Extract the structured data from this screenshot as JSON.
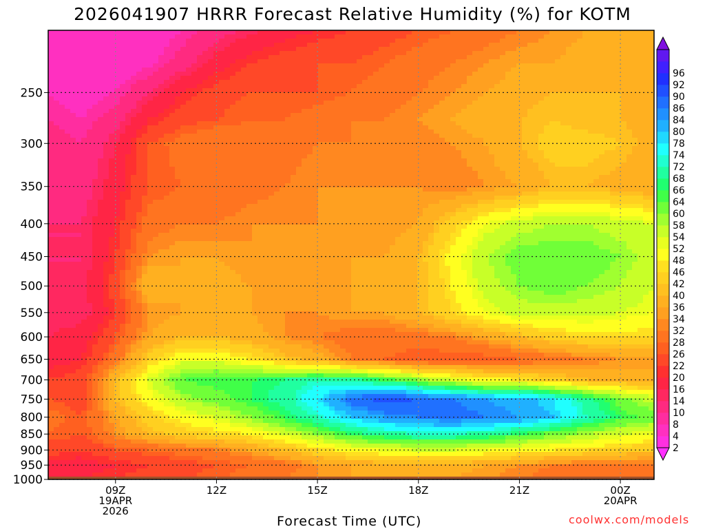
{
  "title": "2026041907 HRRR Forecast Relative Humidity (%) for KOTM",
  "xlabel": "Forecast Time (UTC)",
  "credit": "coolwx.com/models",
  "chart_data": {
    "type": "heatmap",
    "title": "2026041907 HRRR Forecast Relative Humidity (%) for KOTM",
    "xlabel": "Forecast Time (UTC)",
    "ylabel": "",
    "x_ticks": [
      {
        "hour": 9,
        "lines": [
          "09Z",
          "19APR",
          "2026"
        ]
      },
      {
        "hour": 12,
        "lines": [
          "12Z"
        ]
      },
      {
        "hour": 15,
        "lines": [
          "15Z"
        ]
      },
      {
        "hour": 18,
        "lines": [
          "18Z"
        ]
      },
      {
        "hour": 21,
        "lines": [
          "21Z"
        ]
      },
      {
        "hour": 24,
        "lines": [
          "00Z",
          "20APR"
        ]
      }
    ],
    "xlim": [
      7,
      25
    ],
    "y_ticks": [
      250,
      300,
      350,
      400,
      450,
      500,
      550,
      600,
      650,
      700,
      750,
      800,
      850,
      900,
      950,
      1000
    ],
    "ylim": [
      1000,
      200
    ],
    "y_scale": "log",
    "colorbar_levels": [
      2,
      4,
      8,
      10,
      14,
      16,
      20,
      22,
      26,
      28,
      32,
      34,
      36,
      40,
      42,
      46,
      48,
      52,
      54,
      58,
      60,
      64,
      66,
      68,
      72,
      74,
      78,
      80,
      84,
      86,
      90,
      92,
      96
    ],
    "colorbar_colors": [
      "#ff30ff",
      "#ff30e0",
      "#ff30c0",
      "#ff2da0",
      "#ff2a80",
      "#ff2860",
      "#ff2545",
      "#ff3030",
      "#ff4828",
      "#ff6020",
      "#ff7420",
      "#ff8820",
      "#ffa020",
      "#ffb020",
      "#ffc020",
      "#ffd020",
      "#ffe020",
      "#ffff20",
      "#e8ff20",
      "#c8ff28",
      "#a0ff30",
      "#70ff38",
      "#40ff48",
      "#20ff70",
      "#20ffa0",
      "#20ffd0",
      "#20ffff",
      "#20d8ff",
      "#20b0ff",
      "#2090ff",
      "#2070ff",
      "#2050ff",
      "#2030ff",
      "#4020ff",
      "#6018f0",
      "#8010e0"
    ],
    "rows": [
      {
        "p": 200,
        "values": [
          5,
          4,
          4,
          5,
          8,
          12,
          15,
          18,
          20,
          22,
          24,
          26,
          28,
          30,
          32,
          34,
          36,
          36,
          38
        ]
      },
      {
        "p": 225,
        "values": [
          6,
          5,
          5,
          7,
          12,
          18,
          22,
          24,
          26,
          26,
          28,
          30,
          32,
          34,
          36,
          36,
          38,
          38,
          38
        ]
      },
      {
        "p": 250,
        "values": [
          8,
          6,
          8,
          14,
          20,
          24,
          26,
          26,
          26,
          28,
          30,
          32,
          34,
          36,
          38,
          40,
          40,
          40,
          38
        ]
      },
      {
        "p": 275,
        "values": [
          10,
          8,
          12,
          20,
          24,
          26,
          28,
          28,
          30,
          32,
          32,
          34,
          36,
          38,
          40,
          42,
          40,
          40,
          38
        ]
      },
      {
        "p": 300,
        "values": [
          12,
          10,
          16,
          26,
          30,
          32,
          30,
          30,
          32,
          32,
          34,
          32,
          34,
          36,
          40,
          44,
          44,
          42,
          38
        ]
      },
      {
        "p": 350,
        "values": [
          14,
          12,
          18,
          26,
          28,
          28,
          30,
          32,
          34,
          34,
          34,
          34,
          32,
          34,
          36,
          40,
          40,
          38,
          36
        ]
      },
      {
        "p": 400,
        "values": [
          14,
          14,
          20,
          30,
          32,
          32,
          34,
          34,
          34,
          34,
          34,
          36,
          44,
          52,
          56,
          58,
          58,
          56,
          54
        ]
      },
      {
        "p": 450,
        "values": [
          14,
          14,
          22,
          34,
          36,
          36,
          34,
          34,
          34,
          36,
          36,
          40,
          50,
          58,
          62,
          62,
          62,
          60,
          56
        ]
      },
      {
        "p": 500,
        "values": [
          14,
          14,
          24,
          40,
          36,
          38,
          36,
          34,
          34,
          36,
          36,
          40,
          48,
          56,
          60,
          62,
          60,
          58,
          54
        ]
      },
      {
        "p": 550,
        "values": [
          14,
          14,
          22,
          34,
          36,
          38,
          36,
          34,
          34,
          36,
          36,
          40,
          46,
          52,
          56,
          56,
          56,
          54,
          52
        ]
      },
      {
        "p": 600,
        "values": [
          16,
          18,
          26,
          36,
          40,
          40,
          38,
          34,
          32,
          30,
          30,
          30,
          32,
          36,
          40,
          44,
          46,
          46,
          46
        ]
      },
      {
        "p": 650,
        "values": [
          18,
          20,
          30,
          44,
          52,
          52,
          48,
          42,
          38,
          32,
          28,
          26,
          26,
          26,
          28,
          30,
          32,
          34,
          36
        ]
      },
      {
        "p": 700,
        "values": [
          22,
          24,
          40,
          54,
          64,
          66,
          66,
          68,
          72,
          70,
          66,
          60,
          54,
          50,
          48,
          44,
          40,
          38,
          36
        ]
      },
      {
        "p": 750,
        "values": [
          26,
          24,
          40,
          50,
          58,
          62,
          66,
          70,
          78,
          88,
          92,
          90,
          86,
          84,
          82,
          78,
          70,
          62,
          56
        ]
      },
      {
        "p": 800,
        "values": [
          30,
          26,
          36,
          44,
          50,
          54,
          60,
          66,
          72,
          80,
          84,
          86,
          88,
          86,
          84,
          80,
          72,
          66,
          62
        ]
      },
      {
        "p": 850,
        "values": [
          28,
          26,
          34,
          40,
          44,
          46,
          48,
          54,
          60,
          66,
          70,
          72,
          72,
          70,
          66,
          62,
          58,
          54,
          52
        ]
      },
      {
        "p": 900,
        "values": [
          24,
          22,
          26,
          28,
          30,
          32,
          36,
          40,
          46,
          50,
          52,
          54,
          54,
          52,
          50,
          48,
          46,
          44,
          42
        ]
      },
      {
        "p": 950,
        "values": [
          18,
          18,
          20,
          22,
          24,
          26,
          28,
          30,
          34,
          36,
          38,
          38,
          38,
          36,
          34,
          32,
          30,
          30,
          30
        ]
      },
      {
        "p": 1000,
        "values": [
          20,
          20,
          22,
          24,
          26,
          28,
          30,
          32,
          34,
          36,
          36,
          36,
          36,
          34,
          32,
          30,
          30,
          28,
          28
        ]
      }
    ],
    "ground_color": "#a0502a",
    "ground_p": 990
  }
}
